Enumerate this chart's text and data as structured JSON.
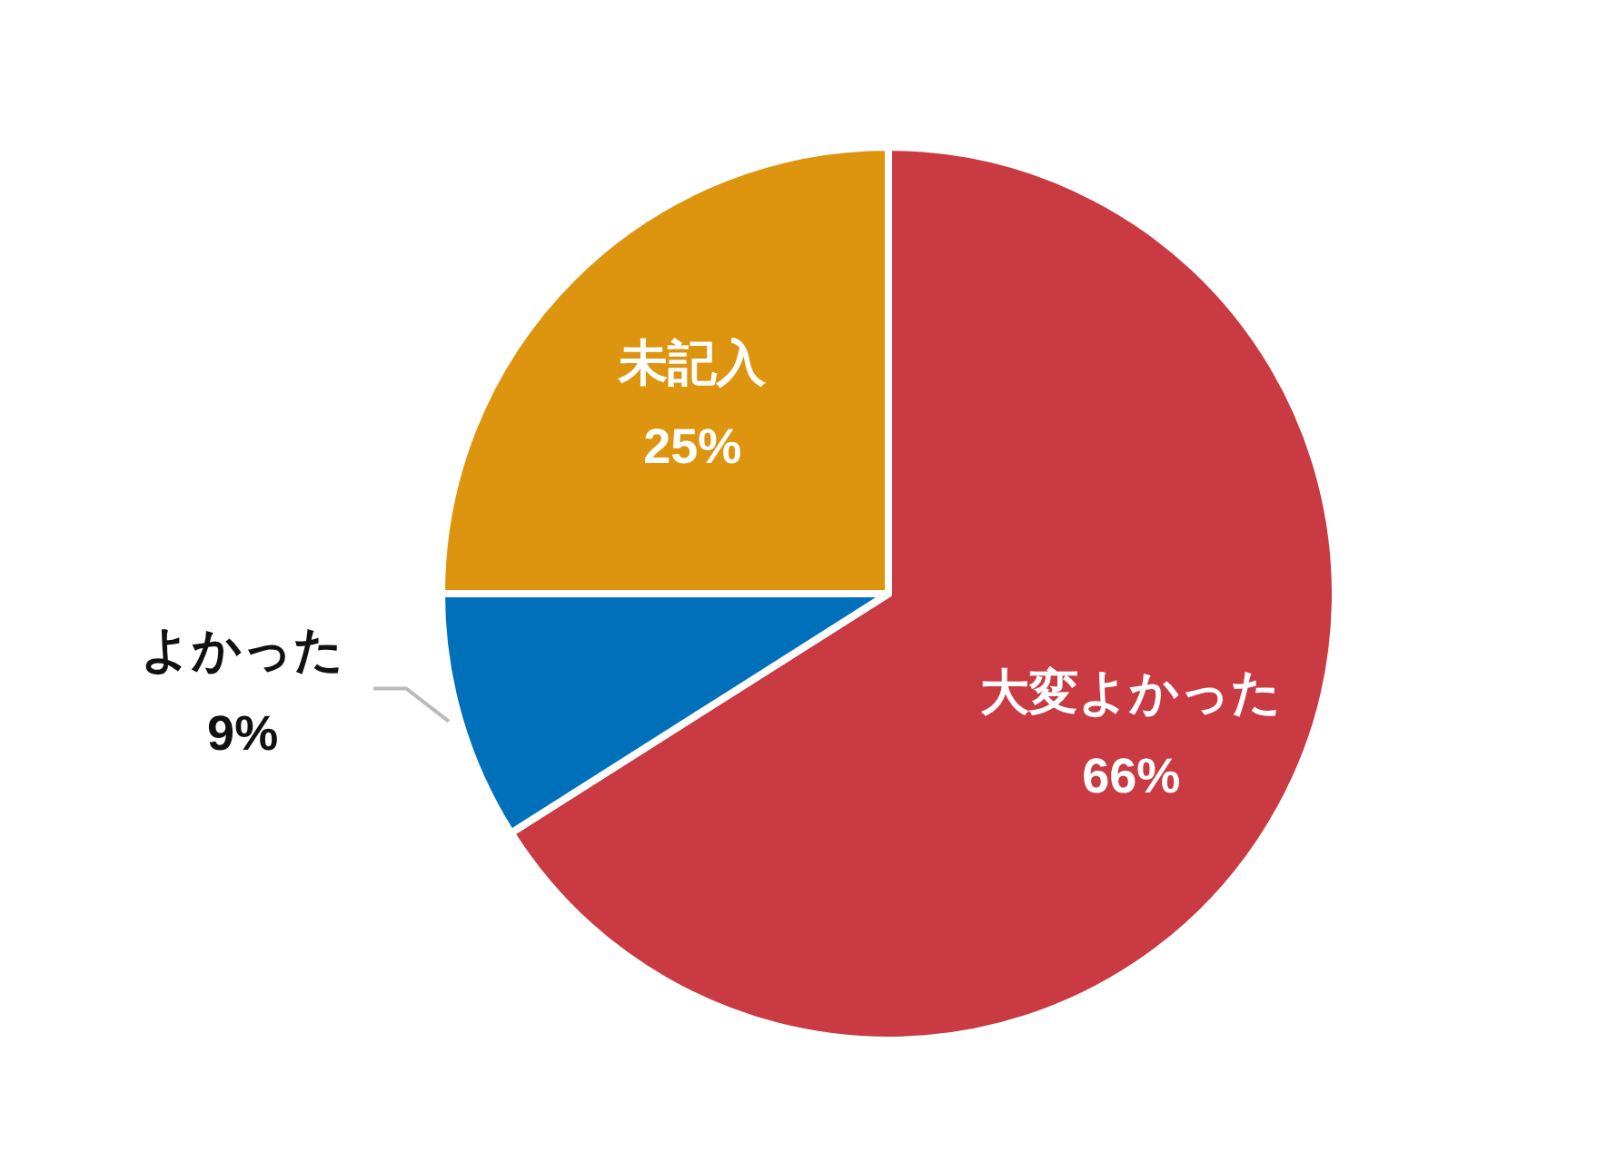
{
  "chart_data": {
    "type": "pie",
    "categories": [
      "大変よかった",
      "よかった",
      "未記入"
    ],
    "values": [
      66,
      9,
      25
    ],
    "colors": [
      "#c93a42",
      "#0070bb",
      "#dd9510"
    ],
    "value_labels": [
      "66%",
      "9%",
      "25%"
    ]
  }
}
